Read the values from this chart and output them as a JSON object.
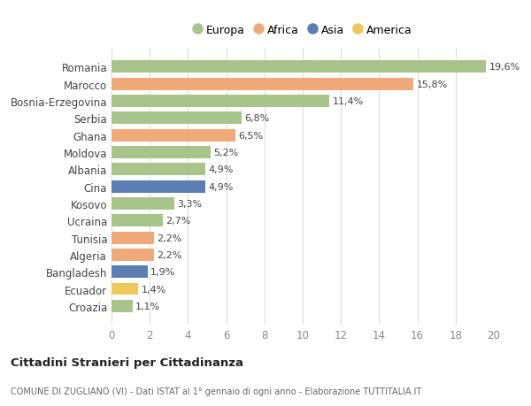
{
  "countries": [
    "Romania",
    "Marocco",
    "Bosnia-Erzegovina",
    "Serbia",
    "Ghana",
    "Moldova",
    "Albania",
    "Cina",
    "Kosovo",
    "Ucraina",
    "Tunisia",
    "Algeria",
    "Bangladesh",
    "Ecuador",
    "Croazia"
  ],
  "values": [
    19.6,
    15.8,
    11.4,
    6.8,
    6.5,
    5.2,
    4.9,
    4.9,
    3.3,
    2.7,
    2.2,
    2.2,
    1.9,
    1.4,
    1.1
  ],
  "labels": [
    "19,6%",
    "15,8%",
    "11,4%",
    "6,8%",
    "6,5%",
    "5,2%",
    "4,9%",
    "4,9%",
    "3,3%",
    "2,7%",
    "2,2%",
    "2,2%",
    "1,9%",
    "1,4%",
    "1,1%"
  ],
  "continents": [
    "Europa",
    "Africa",
    "Europa",
    "Europa",
    "Africa",
    "Europa",
    "Europa",
    "Asia",
    "Europa",
    "Europa",
    "Africa",
    "Africa",
    "Asia",
    "America",
    "Europa"
  ],
  "colors": {
    "Europa": "#a8c48a",
    "Africa": "#f0aa7a",
    "Asia": "#5b7fb5",
    "America": "#f0c85a"
  },
  "xlim": [
    0,
    20
  ],
  "xticks": [
    0,
    2,
    4,
    6,
    8,
    10,
    12,
    14,
    16,
    18,
    20
  ],
  "title": "Cittadini Stranieri per Cittadinanza",
  "subtitle": "COMUNE DI ZUGLIANO (VI) - Dati ISTAT al 1° gennaio di ogni anno - Elaborazione TUTTITALIA.IT",
  "bg_color": "#ffffff",
  "grid_color": "#dddddd"
}
